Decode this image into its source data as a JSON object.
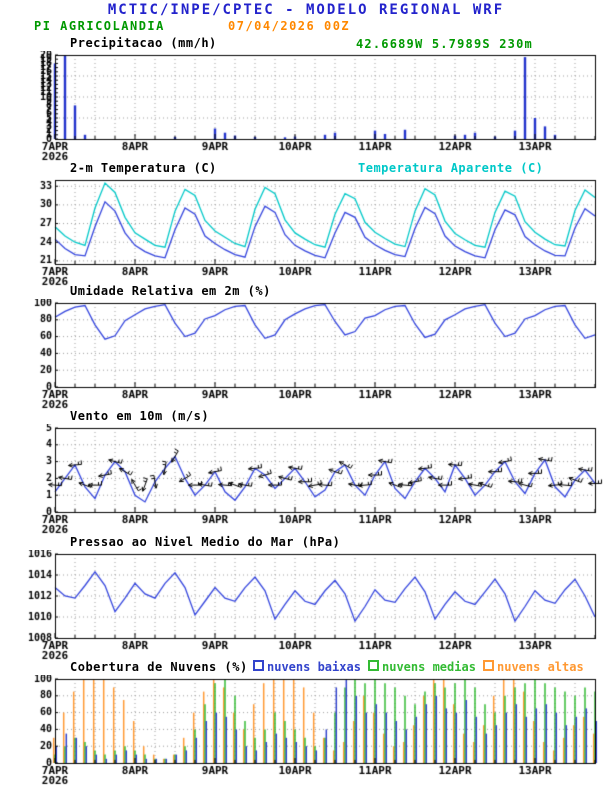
{
  "header": {
    "title": "MCTIC/INPE/CPTEC - MODELO REGIONAL WRF",
    "station": "PI AGRICOLANDIA",
    "run": "07/04/2026 00Z",
    "coords": "42.6689W 5.7989S 230m"
  },
  "colors": {
    "title": "#2323cc",
    "station": "#009900",
    "run": "#ff8800",
    "coords": "#009900",
    "line_blue": "#3344dd",
    "apparent_cyan": "#00c8c8",
    "precip": "#2233cc",
    "cloud_low": "#3344cc",
    "cloud_mid": "#33bb33",
    "cloud_high": "#ff9933",
    "barb": "#000000",
    "grid": "#9a9a9a",
    "axis": "#000000",
    "text": "#000000"
  },
  "time": {
    "step_hours": 3,
    "total_hours": 162,
    "day_labels": [
      "7APR",
      "8APR",
      "9APR",
      "10APR",
      "11APR",
      "12APR",
      "13APR"
    ],
    "year": "2026"
  },
  "chart_data": [
    {
      "id": "precipitation",
      "type": "bar",
      "title": "Precipitacao (mm/h)",
      "ylim": [
        0,
        20
      ],
      "yticks": [
        0,
        1,
        2,
        3,
        4,
        5,
        6,
        7,
        8,
        9,
        10,
        11,
        12,
        13,
        14,
        15,
        16,
        17,
        18,
        19,
        20
      ],
      "ygrid": [
        5,
        10,
        15
      ],
      "values": [
        18,
        20,
        8,
        1,
        0,
        0,
        0,
        0,
        0,
        0,
        0,
        0,
        0.5,
        0,
        0,
        0,
        2.5,
        1.5,
        0.8,
        0,
        0.5,
        0,
        0,
        0.4,
        0.6,
        0,
        0,
        1,
        1.5,
        0,
        0,
        0,
        2,
        1.2,
        0,
        2.2,
        0,
        0,
        0,
        0,
        0.8,
        1,
        1.5,
        0,
        0.6,
        0,
        2,
        19.5,
        5,
        3,
        1,
        0,
        0,
        0,
        0
      ]
    },
    {
      "id": "temperature",
      "type": "line",
      "title": "2-m Temperatura (C)",
      "title2": "Temperatura Aparente (C)",
      "ylim": [
        20.5,
        34
      ],
      "yticks": [
        21,
        24,
        27,
        30,
        33
      ],
      "ygrid": [
        21,
        24,
        27,
        30,
        33
      ],
      "series": [
        {
          "name": "2-m Temperatura (C)",
          "color": "line_blue",
          "values": [
            24.5,
            23.0,
            22.0,
            21.8,
            26.5,
            30.5,
            29.0,
            25.5,
            23.5,
            22.5,
            21.8,
            21.5,
            26.0,
            29.5,
            28.5,
            25.0,
            23.8,
            22.8,
            22.0,
            21.6,
            26.5,
            29.8,
            28.8,
            25.2,
            23.5,
            22.6,
            21.9,
            21.5,
            25.5,
            28.8,
            28.0,
            24.8,
            23.6,
            22.7,
            22.0,
            21.7,
            26.2,
            29.6,
            28.6,
            25.0,
            23.4,
            22.5,
            21.8,
            21.5,
            26.0,
            29.2,
            28.4,
            24.9,
            23.6,
            22.6,
            21.9,
            21.8,
            26.3,
            29.4,
            28.2
          ]
        },
        {
          "name": "Temperatura Aparente (C)",
          "color": "apparent_cyan",
          "values": [
            26.5,
            25.0,
            24.0,
            23.5,
            29.5,
            33.5,
            32.0,
            28.0,
            25.5,
            24.5,
            23.5,
            23.2,
            29.0,
            32.5,
            31.5,
            27.5,
            25.8,
            24.8,
            23.8,
            23.3,
            29.3,
            32.8,
            31.8,
            27.6,
            25.5,
            24.5,
            23.6,
            23.2,
            28.5,
            31.8,
            31.0,
            27.2,
            25.6,
            24.6,
            23.7,
            23.3,
            29.0,
            32.6,
            31.6,
            27.4,
            25.4,
            24.4,
            23.5,
            23.2,
            28.8,
            32.2,
            31.4,
            27.3,
            25.6,
            24.5,
            23.6,
            23.4,
            29.1,
            32.4,
            31.2
          ]
        }
      ]
    },
    {
      "id": "humidity",
      "type": "line",
      "title": "Umidade Relativa em 2m (%)",
      "ylim": [
        0,
        100
      ],
      "yticks": [
        0,
        20,
        40,
        60,
        80,
        100
      ],
      "ygrid": [
        20,
        40,
        60,
        80
      ],
      "series": [
        {
          "name": "Umidade Relativa",
          "color": "line_blue",
          "values": [
            83,
            90,
            95,
            97,
            74,
            57,
            61,
            79,
            86,
            93,
            96,
            98,
            76,
            60,
            64,
            81,
            85,
            92,
            96,
            97,
            74,
            58,
            62,
            80,
            87,
            93,
            97,
            98,
            78,
            62,
            66,
            82,
            85,
            92,
            96,
            97,
            75,
            59,
            63,
            80,
            86,
            93,
            96,
            98,
            76,
            60,
            64,
            81,
            85,
            92,
            96,
            97,
            74,
            58,
            62
          ]
        }
      ]
    },
    {
      "id": "wind",
      "type": "wind",
      "title": "Vento em 10m (m/s)",
      "ylim": [
        0,
        5
      ],
      "yticks": [
        0,
        1,
        2,
        3,
        4,
        5
      ],
      "ygrid": [
        1,
        2,
        3,
        4
      ],
      "speed": [
        1.2,
        2.0,
        2.8,
        1.5,
        0.8,
        2.2,
        3.0,
        2.4,
        1.0,
        0.6,
        1.8,
        2.6,
        3.3,
        2.0,
        1.0,
        1.6,
        2.4,
        1.2,
        0.7,
        1.5,
        2.6,
        2.2,
        1.4,
        2.0,
        2.6,
        1.8,
        0.9,
        1.3,
        2.4,
        2.8,
        1.6,
        1.0,
        2.2,
        3.0,
        1.4,
        0.8,
        1.8,
        2.6,
        2.0,
        1.2,
        2.8,
        2.0,
        1.0,
        1.6,
        2.4,
        3.0,
        1.8,
        1.1,
        2.3,
        3.1,
        1.5,
        0.9,
        1.9,
        2.5,
        1.7
      ],
      "direction_deg_from": [
        95,
        100,
        85,
        110,
        90,
        80,
        105,
        120,
        150,
        20,
        350,
        10,
        30,
        60,
        90,
        100,
        80,
        95,
        110,
        100,
        85,
        75,
        90,
        105,
        100,
        90,
        80,
        95,
        110,
        120,
        100,
        85,
        90,
        100,
        110,
        95,
        80,
        85,
        100,
        90,
        95,
        85,
        100,
        110,
        90,
        80,
        95,
        105,
        90,
        100,
        85,
        95,
        110,
        100,
        90
      ]
    },
    {
      "id": "pressure",
      "type": "line",
      "title": "Pressao ao Nivel Medio do Mar (hPa)",
      "ylim": [
        1008,
        1016
      ],
      "yticks": [
        1008,
        1010,
        1012,
        1014,
        1016
      ],
      "ygrid": [
        1010,
        1012,
        1014
      ],
      "series": [
        {
          "name": "Pressao",
          "color": "line_blue",
          "values": [
            1012.8,
            1012.0,
            1011.8,
            1013.0,
            1014.3,
            1013.0,
            1010.5,
            1011.8,
            1013.2,
            1012.2,
            1011.8,
            1013.2,
            1014.2,
            1012.8,
            1010.2,
            1011.5,
            1012.8,
            1011.8,
            1011.5,
            1012.8,
            1013.8,
            1012.5,
            1009.8,
            1011.2,
            1012.5,
            1011.5,
            1011.2,
            1012.5,
            1013.5,
            1012.2,
            1009.6,
            1011.0,
            1012.6,
            1011.6,
            1011.4,
            1012.7,
            1013.8,
            1012.4,
            1009.8,
            1011.2,
            1012.4,
            1011.5,
            1011.2,
            1012.4,
            1013.6,
            1012.2,
            1009.6,
            1011.0,
            1012.5,
            1011.6,
            1011.3,
            1012.6,
            1013.6,
            1012.0,
            1010.0
          ]
        }
      ]
    },
    {
      "id": "clouds",
      "type": "clouds",
      "title": "Cobertura de Nuvens (%)",
      "ylim": [
        0,
        100
      ],
      "yticks": [
        0,
        20,
        40,
        60,
        80,
        100
      ],
      "ygrid": [
        20,
        40,
        60,
        80
      ],
      "legend": [
        {
          "label": "nuvens baixas",
          "color": "cloud_low"
        },
        {
          "label": "nuvens medias",
          "color": "cloud_mid"
        },
        {
          "label": "nuvens altas",
          "color": "cloud_high"
        }
      ],
      "series": [
        {
          "name": "nuvens altas",
          "color": "cloud_high",
          "values": [
            30,
            60,
            85,
            100,
            100,
            100,
            90,
            75,
            50,
            20,
            10,
            5,
            10,
            30,
            60,
            85,
            100,
            90,
            60,
            40,
            70,
            95,
            100,
            100,
            100,
            90,
            60,
            30,
            15,
            25,
            50,
            80,
            60,
            35,
            20,
            25,
            45,
            80,
            100,
            100,
            70,
            35,
            25,
            45,
            80,
            100,
            100,
            85,
            50,
            25,
            15,
            30,
            45,
            55,
            35
          ]
        },
        {
          "name": "nuvens medias",
          "color": "cloud_mid",
          "values": [
            10,
            20,
            30,
            25,
            15,
            10,
            15,
            20,
            15,
            10,
            5,
            5,
            10,
            20,
            40,
            70,
            95,
            100,
            80,
            50,
            30,
            40,
            60,
            50,
            40,
            30,
            20,
            30,
            60,
            90,
            100,
            95,
            100,
            95,
            90,
            80,
            70,
            85,
            95,
            90,
            95,
            100,
            90,
            70,
            60,
            80,
            90,
            95,
            100,
            95,
            90,
            85,
            80,
            90,
            85
          ]
        },
        {
          "name": "nuvens baixas",
          "color": "cloud_low",
          "values": [
            20,
            35,
            30,
            20,
            10,
            5,
            10,
            15,
            10,
            5,
            5,
            5,
            10,
            15,
            30,
            50,
            60,
            55,
            40,
            20,
            15,
            25,
            35,
            30,
            25,
            20,
            15,
            40,
            90,
            100,
            80,
            60,
            70,
            60,
            50,
            40,
            55,
            70,
            80,
            65,
            60,
            75,
            55,
            35,
            45,
            60,
            70,
            55,
            65,
            70,
            60,
            45,
            55,
            65,
            50
          ]
        }
      ]
    }
  ]
}
